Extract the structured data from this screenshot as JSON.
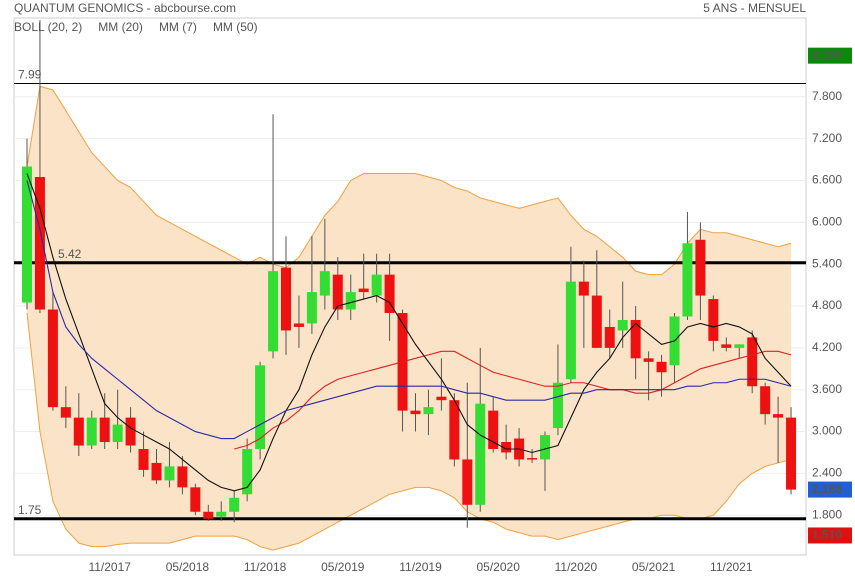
{
  "chart_data": {
    "type": "candlestick",
    "title": "QUANTUM GENOMICS - abcbourse.com",
    "subtitle": "5 ANS - MENSUEL",
    "categories": [
      null,
      null,
      null,
      null,
      null,
      null,
      "11/2017",
      null,
      null,
      null,
      null,
      null,
      "05/2018",
      null,
      null,
      null,
      null,
      null,
      "11/2018",
      null,
      null,
      null,
      null,
      null,
      "05/2019",
      null,
      null,
      null,
      null,
      null,
      "11/2019",
      null,
      null,
      null,
      null,
      null,
      "05/2020",
      null,
      null,
      null,
      null,
      null,
      "11/2020",
      null,
      null,
      null,
      null,
      null,
      "05/2021",
      null,
      null,
      null,
      null,
      null,
      "11/2021",
      null,
      null,
      null,
      null,
      null
    ],
    "open": [
      4.85,
      6.65,
      4.75,
      3.35,
      3.2,
      2.8,
      3.2,
      2.85,
      3.2,
      2.75,
      2.55,
      2.3,
      2.5,
      2.2,
      1.85,
      1.78,
      1.85,
      2.1,
      2.75,
      4.15,
      5.35,
      4.55,
      4.55,
      4.95,
      5.25,
      4.75,
      5.05,
      4.95,
      5.25,
      4.7,
      3.3,
      3.25,
      3.5,
      3.45,
      2.6,
      1.95,
      3.3,
      2.85,
      2.9,
      2.62,
      2.6,
      3.05,
      3.75,
      5.15,
      4.95,
      4.5,
      4.45,
      4.6,
      4.05,
      4.0,
      3.95,
      4.65,
      5.75,
      4.9,
      4.25,
      4.2,
      4.35,
      3.65,
      3.25,
      3.2
    ],
    "high": [
      7.2,
      8.9,
      5.0,
      3.65,
      3.55,
      3.3,
      3.55,
      3.6,
      3.35,
      3.0,
      2.75,
      2.85,
      2.65,
      2.25,
      1.95,
      2.0,
      2.15,
      2.9,
      4.0,
      7.55,
      5.8,
      4.95,
      5.8,
      6.05,
      5.5,
      5.25,
      5.55,
      5.55,
      5.55,
      4.75,
      3.55,
      3.6,
      4.05,
      3.55,
      3.7,
      4.2,
      3.5,
      3.1,
      3.05,
      2.75,
      3.0,
      4.25,
      5.65,
      5.45,
      5.6,
      4.75,
      5.15,
      4.8,
      4.15,
      4.1,
      4.7,
      6.15,
      6.0,
      4.95,
      4.35,
      4.25,
      4.45,
      3.7,
      3.5,
      3.35
    ],
    "low": [
      4.75,
      4.7,
      3.3,
      3.05,
      2.65,
      2.75,
      2.75,
      2.75,
      2.7,
      2.35,
      2.25,
      2.2,
      2.1,
      1.8,
      1.72,
      1.72,
      1.7,
      2.0,
      2.6,
      4.05,
      4.1,
      4.2,
      4.4,
      4.75,
      4.6,
      4.6,
      4.9,
      4.85,
      4.3,
      3.0,
      3.0,
      2.95,
      3.3,
      2.5,
      1.62,
      1.85,
      2.7,
      2.6,
      2.5,
      2.55,
      2.15,
      2.95,
      3.7,
      4.2,
      4.2,
      4.05,
      4.2,
      3.75,
      3.45,
      3.5,
      3.7,
      4.6,
      4.6,
      4.15,
      4.15,
      4.05,
      3.55,
      3.1,
      2.55,
      2.1
    ],
    "close": [
      6.8,
      4.75,
      3.35,
      3.2,
      2.8,
      3.2,
      2.85,
      3.1,
      2.8,
      2.45,
      2.3,
      2.5,
      2.2,
      1.85,
      1.75,
      1.85,
      2.05,
      2.75,
      3.95,
      5.3,
      4.45,
      4.5,
      5.0,
      5.3,
      4.75,
      5.0,
      5.0,
      5.25,
      4.7,
      3.3,
      3.25,
      3.35,
      3.45,
      2.6,
      1.95,
      3.4,
      2.75,
      2.7,
      2.6,
      2.6,
      2.95,
      3.7,
      5.15,
      4.95,
      4.2,
      4.2,
      4.6,
      4.05,
      4.0,
      3.85,
      4.65,
      5.7,
      4.95,
      4.3,
      4.2,
      4.25,
      3.65,
      3.25,
      3.2,
      2.168
    ],
    "up_color": "#33dd33",
    "down_color": "#ee1111",
    "wick_color": "#555555",
    "band": {
      "name": "BOLL (20, 2)",
      "color": "#f0a040",
      "fill": "#fbe3c8",
      "upper": [
        6.8,
        7.95,
        7.9,
        7.6,
        7.3,
        7.0,
        6.8,
        6.6,
        6.5,
        6.3,
        6.1,
        6.0,
        5.9,
        5.8,
        5.7,
        5.6,
        5.5,
        5.4,
        5.5,
        5.4,
        5.35,
        5.5,
        5.8,
        6.1,
        6.3,
        6.6,
        6.7,
        6.7,
        6.7,
        6.7,
        6.7,
        6.65,
        6.6,
        6.5,
        6.45,
        6.35,
        6.3,
        6.25,
        6.2,
        6.25,
        6.3,
        6.35,
        6.1,
        5.9,
        5.8,
        5.65,
        5.5,
        5.3,
        5.25,
        5.25,
        5.4,
        5.7,
        5.9,
        5.85,
        5.85,
        5.8,
        5.75,
        5.7,
        5.65,
        5.7
      ],
      "lower": [
        4.7,
        3.0,
        2.0,
        1.6,
        1.4,
        1.35,
        1.35,
        1.38,
        1.4,
        1.4,
        1.4,
        1.4,
        1.45,
        1.5,
        1.5,
        1.5,
        1.5,
        1.45,
        1.35,
        1.3,
        1.35,
        1.4,
        1.5,
        1.6,
        1.7,
        1.8,
        1.9,
        2.0,
        2.1,
        2.15,
        2.2,
        2.2,
        2.15,
        2.05,
        1.85,
        1.75,
        1.7,
        1.6,
        1.55,
        1.5,
        1.5,
        1.45,
        1.5,
        1.55,
        1.6,
        1.65,
        1.7,
        1.75,
        1.75,
        1.8,
        1.8,
        1.75,
        1.75,
        1.8,
        2.0,
        2.25,
        2.4,
        2.5,
        2.55,
        2.6
      ]
    },
    "series": [
      {
        "name": "MM (20)",
        "color": "#e02020",
        "values": [
          null,
          null,
          null,
          null,
          null,
          null,
          null,
          null,
          null,
          null,
          null,
          null,
          null,
          null,
          null,
          null,
          2.75,
          2.8,
          2.9,
          3.05,
          3.15,
          3.3,
          3.5,
          3.65,
          3.75,
          3.8,
          3.85,
          3.9,
          3.95,
          4.0,
          4.05,
          4.1,
          4.15,
          4.15,
          4.05,
          3.95,
          3.85,
          3.8,
          3.75,
          3.7,
          3.65,
          3.65,
          3.7,
          3.7,
          3.65,
          3.6,
          3.6,
          3.55,
          3.55,
          3.6,
          3.7,
          3.8,
          3.9,
          3.95,
          4.0,
          4.05,
          4.1,
          4.15,
          4.15,
          4.1
        ]
      },
      {
        "name": "MM (7)",
        "color": "#111111",
        "values": [
          6.7,
          6.2,
          5.5,
          4.9,
          4.4,
          3.9,
          3.4,
          3.2,
          3.05,
          2.95,
          2.85,
          2.75,
          2.6,
          2.45,
          2.3,
          2.2,
          2.15,
          2.2,
          2.45,
          2.9,
          3.3,
          3.6,
          4.1,
          4.5,
          4.8,
          4.85,
          4.9,
          4.95,
          4.85,
          4.55,
          4.25,
          4.0,
          3.75,
          3.45,
          3.1,
          2.95,
          2.85,
          2.75,
          2.75,
          2.7,
          2.75,
          2.8,
          3.2,
          3.6,
          3.85,
          4.05,
          4.35,
          4.55,
          4.4,
          4.25,
          4.3,
          4.5,
          4.55,
          4.5,
          4.55,
          4.5,
          4.4,
          4.05,
          3.85,
          3.65
        ]
      },
      {
        "name": "MM (50)",
        "color": "#2a2aa8",
        "values": [
          6.6,
          5.9,
          5.0,
          4.5,
          4.25,
          4.05,
          3.9,
          3.75,
          3.6,
          3.45,
          3.3,
          3.2,
          3.1,
          3.0,
          2.95,
          2.9,
          2.9,
          3.0,
          3.1,
          3.2,
          3.3,
          3.35,
          3.4,
          3.45,
          3.5,
          3.55,
          3.6,
          3.65,
          3.65,
          3.65,
          3.65,
          3.65,
          3.65,
          3.6,
          3.55,
          3.55,
          3.5,
          3.45,
          3.45,
          3.45,
          3.45,
          3.5,
          3.55,
          3.55,
          3.6,
          3.6,
          3.6,
          3.6,
          3.6,
          3.6,
          3.6,
          3.65,
          3.65,
          3.7,
          3.7,
          3.75,
          3.75,
          3.75,
          3.7,
          3.65
        ]
      }
    ],
    "hlines": [
      {
        "value": 7.99,
        "width": 1
      },
      {
        "value": 5.42,
        "width": 3
      },
      {
        "value": 1.75,
        "width": 3
      }
    ],
    "price_tags": [
      {
        "value": 8.39,
        "label": "8.390",
        "color": "#0a8a0a"
      },
      {
        "value": 2.168,
        "label": "2.168",
        "color": "#1f5fd0"
      },
      {
        "value": 1.51,
        "label": "1.510",
        "color": "#e01010"
      }
    ],
    "ylim": [
      1.23,
      8.93
    ],
    "yticks": [
      {
        "value": 1.8,
        "label": "1.800"
      },
      {
        "value": 2.4,
        "label": "2.400"
      },
      {
        "value": 3.0,
        "label": "3.000"
      },
      {
        "value": 3.6,
        "label": "3.600"
      },
      {
        "value": 4.2,
        "label": "4.200"
      },
      {
        "value": 4.8,
        "label": "4.800"
      },
      {
        "value": 5.4,
        "label": "5.400"
      },
      {
        "value": 6.0,
        "label": "6.000"
      },
      {
        "value": 6.6,
        "label": "6.600"
      },
      {
        "value": 7.2,
        "label": "7.200"
      },
      {
        "value": 7.8,
        "label": "7.800"
      }
    ],
    "grid": true
  }
}
